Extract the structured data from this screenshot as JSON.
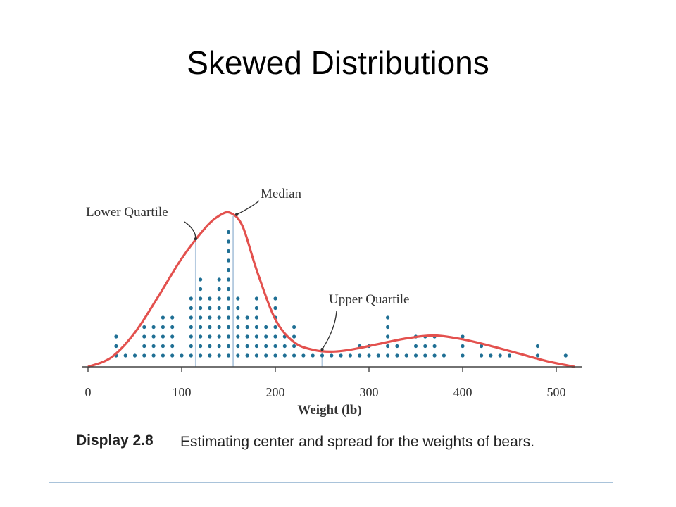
{
  "slide": {
    "title": "Skewed Distributions"
  },
  "caption": {
    "label": "Display 2.8",
    "text": "Estimating center and spread for the weights of bears."
  },
  "colors": {
    "dot": "#1f6f94",
    "curve": "#e3514e",
    "quartile_line": "#b5cbe0",
    "axis": "#444444"
  },
  "chart_data": {
    "type": "scatter",
    "subtype": "dot plot with density curve",
    "xlabel": "Weight (lb)",
    "xlim": [
      0,
      520
    ],
    "xticks": [
      0,
      100,
      200,
      300,
      400,
      500
    ],
    "dot_bin_width_lb": 10,
    "dot_columns": [
      {
        "x": 30,
        "count": 3
      },
      {
        "x": 40,
        "count": 1
      },
      {
        "x": 50,
        "count": 1
      },
      {
        "x": 60,
        "count": 4
      },
      {
        "x": 70,
        "count": 4
      },
      {
        "x": 80,
        "count": 5
      },
      {
        "x": 90,
        "count": 5
      },
      {
        "x": 100,
        "count": 1
      },
      {
        "x": 110,
        "count": 7
      },
      {
        "x": 120,
        "count": 9
      },
      {
        "x": 130,
        "count": 7
      },
      {
        "x": 140,
        "count": 9
      },
      {
        "x": 150,
        "count": 14
      },
      {
        "x": 160,
        "count": 7
      },
      {
        "x": 170,
        "count": 5
      },
      {
        "x": 180,
        "count": 7
      },
      {
        "x": 190,
        "count": 4
      },
      {
        "x": 200,
        "count": 7
      },
      {
        "x": 210,
        "count": 3
      },
      {
        "x": 220,
        "count": 4
      },
      {
        "x": 230,
        "count": 1
      },
      {
        "x": 240,
        "count": 1
      },
      {
        "x": 250,
        "count": 1
      },
      {
        "x": 260,
        "count": 1
      },
      {
        "x": 270,
        "count": 1
      },
      {
        "x": 280,
        "count": 1
      },
      {
        "x": 290,
        "count": 2
      },
      {
        "x": 300,
        "count": 2
      },
      {
        "x": 310,
        "count": 1
      },
      {
        "x": 320,
        "count": 5
      },
      {
        "x": 330,
        "count": 2
      },
      {
        "x": 340,
        "count": 1
      },
      {
        "x": 350,
        "count": 3
      },
      {
        "x": 360,
        "count": 3
      },
      {
        "x": 370,
        "count": 3
      },
      {
        "x": 380,
        "count": 1
      },
      {
        "x": 400,
        "count": 3
      },
      {
        "x": 420,
        "count": 2
      },
      {
        "x": 430,
        "count": 1
      },
      {
        "x": 440,
        "count": 1
      },
      {
        "x": 450,
        "count": 1
      },
      {
        "x": 480,
        "count": 2
      },
      {
        "x": 510,
        "count": 1
      }
    ],
    "density_curve": {
      "x": [
        0,
        25,
        50,
        75,
        100,
        125,
        140,
        152,
        165,
        180,
        200,
        220,
        240,
        260,
        280,
        310,
        340,
        370,
        400,
        430,
        460,
        490,
        520
      ],
      "height_in_dots": [
        0,
        1.0,
        3.6,
        7.4,
        11.4,
        14.6,
        15.9,
        16.2,
        14.8,
        10.2,
        5.0,
        2.6,
        1.8,
        1.6,
        1.8,
        2.4,
        3.0,
        3.3,
        2.9,
        2.2,
        1.4,
        0.6,
        0
      ]
    },
    "markers": [
      {
        "label": "Lower Quartile",
        "x": 115
      },
      {
        "label": "Median",
        "x": 155
      },
      {
        "label": "Upper Quartile",
        "x": 250
      }
    ]
  }
}
